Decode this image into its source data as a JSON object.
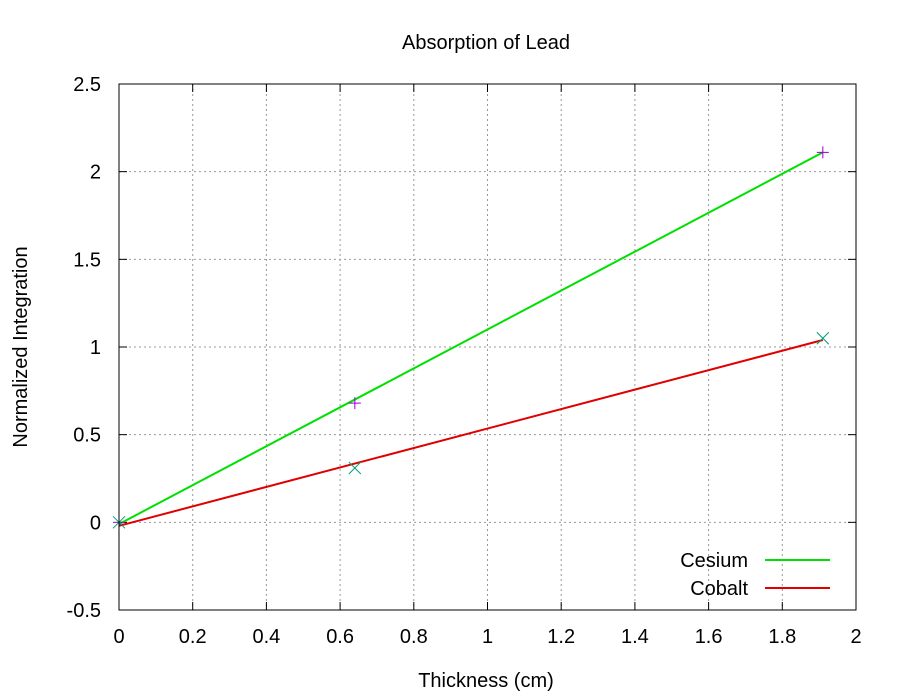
{
  "chart_data": {
    "type": "line",
    "title": "Absorption of Lead",
    "xlabel": "Thickness (cm)",
    "ylabel": "Normalized Integration",
    "xlim": [
      0,
      2
    ],
    "ylim": [
      -0.5,
      2.5
    ],
    "xticks": [
      "0",
      "0.2",
      "0.4",
      "0.6",
      "0.8",
      "1",
      "1.2",
      "1.4",
      "1.6",
      "1.8",
      "2"
    ],
    "yticks": [
      "-0.5",
      "0",
      "0.5",
      "1",
      "1.5",
      "2",
      "2.5"
    ],
    "grid": true,
    "legend_position": "bottom-right",
    "series": [
      {
        "name": "Cesium",
        "kind": "fit-line",
        "color": "#00e000",
        "x": [
          0,
          1.91
        ],
        "y": [
          -0.01,
          2.11
        ]
      },
      {
        "name": "Cobalt",
        "kind": "fit-line",
        "color": "#e00000",
        "x": [
          0,
          1.91
        ],
        "y": [
          -0.02,
          1.04
        ]
      },
      {
        "kind": "points",
        "marker": "plus",
        "color": "#9400d3",
        "x": [
          0,
          0.64,
          1.91
        ],
        "y": [
          0,
          0.68,
          2.11
        ]
      },
      {
        "kind": "points",
        "marker": "cross",
        "color": "#009e73",
        "x": [
          0,
          0.64,
          1.91
        ],
        "y": [
          0,
          0.31,
          1.05
        ]
      }
    ]
  }
}
